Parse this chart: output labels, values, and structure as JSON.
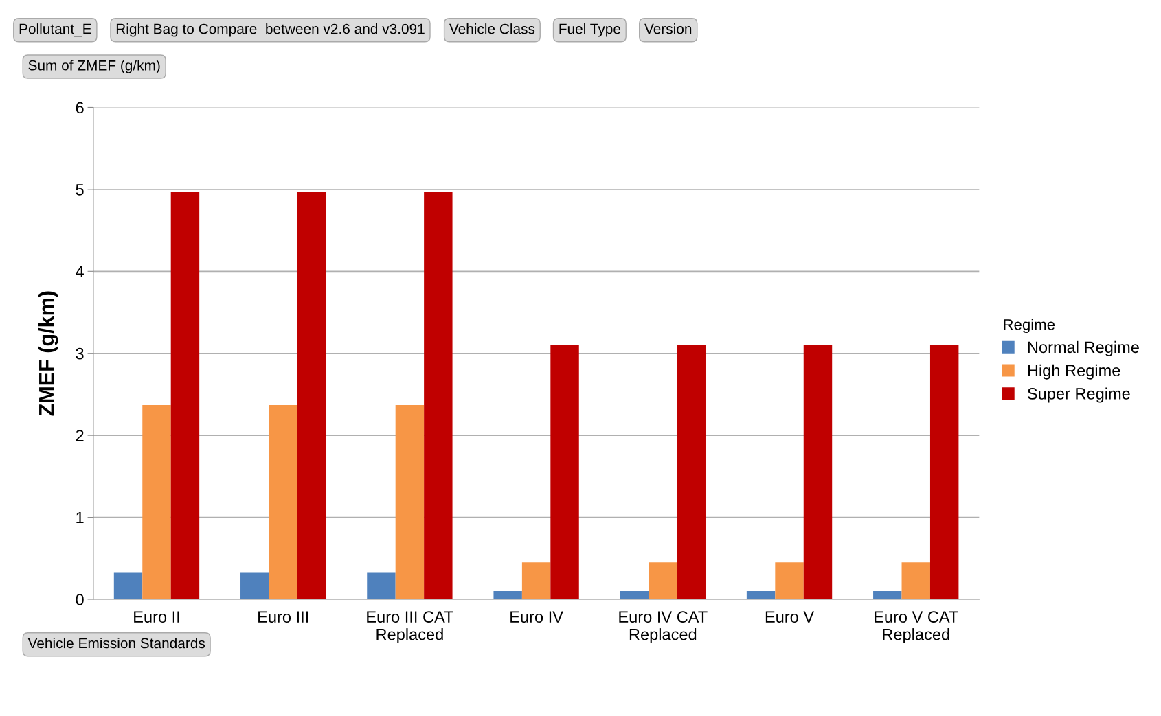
{
  "chart_data": {
    "type": "bar",
    "ylabel": "ZMEF (g/km)",
    "xlabel": "Vehicle Emission Standards",
    "legend_title": "Regime",
    "legend": "right",
    "annotations": [
      "Pollutant_E",
      "Right Bag to Compare  between v2.6 and v3.091",
      "Vehicle Class",
      "Fuel Type",
      "Version",
      "Sum of ZMEF (g/km)"
    ],
    "categories": [
      "Euro II",
      "Euro III",
      "Euro III CAT\nReplaced",
      "Euro IV",
      "Euro IV CAT\nReplaced",
      "Euro V",
      "Euro V CAT\nReplaced"
    ],
    "series": [
      {
        "name": "Normal Regime",
        "color": "#4f81bd",
        "values": [
          0.33,
          0.33,
          0.33,
          0.1,
          0.1,
          0.1,
          0.1
        ]
      },
      {
        "name": "High Regime",
        "color": "#f79646",
        "values": [
          2.37,
          2.37,
          2.37,
          0.45,
          0.45,
          0.45,
          0.45
        ]
      },
      {
        "name": "Super Regime",
        "color": "#c00000",
        "values": [
          4.97,
          4.97,
          4.97,
          3.1,
          3.1,
          3.1,
          3.1
        ]
      }
    ],
    "ylim": [
      0,
      6
    ],
    "yticks": [
      0,
      1,
      2,
      3,
      4,
      5,
      6
    ],
    "grid": "y"
  }
}
